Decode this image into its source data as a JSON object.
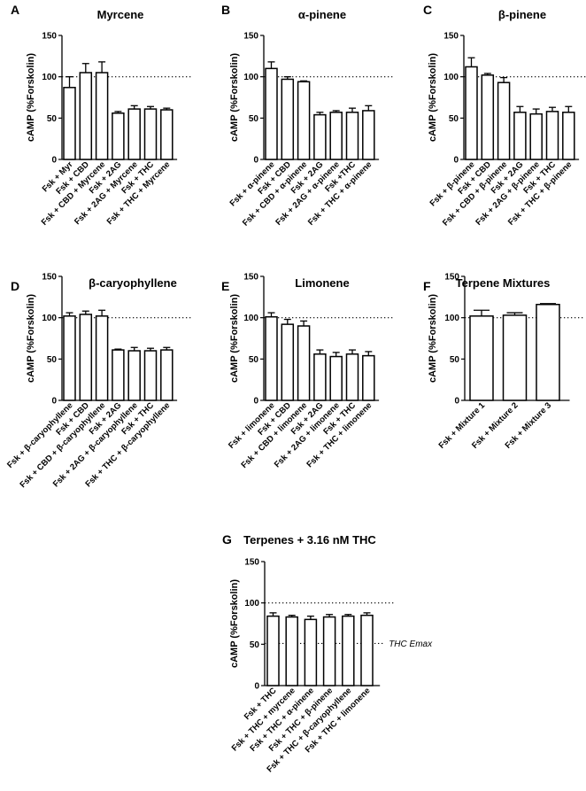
{
  "chart_data": [
    {
      "id": "A",
      "title": "Myrcene",
      "type": "bar",
      "ylabel": "cAMP (%Forskolin)",
      "ylim": [
        0,
        150
      ],
      "yticks": [
        0,
        50,
        100,
        150
      ],
      "reference_lines": [
        {
          "y": 100,
          "style": "dotted",
          "label": ""
        }
      ],
      "categories": [
        "Fsk + Myr",
        "Fsk + CBD",
        "Fsk + CBD + Myrcene",
        "Fsk + 2AG",
        "Fsk + 2AG + Myrcene",
        "Fsk + THC",
        "Fsk + THC + Myrcene"
      ],
      "values": [
        87,
        105,
        105,
        56,
        61,
        61,
        60
      ],
      "errors": [
        13,
        11,
        13,
        2,
        4,
        3,
        2
      ]
    },
    {
      "id": "B",
      "title": "α-pinene",
      "type": "bar",
      "ylabel": "cAMP (%Forskolin)",
      "ylim": [
        0,
        150
      ],
      "yticks": [
        0,
        50,
        100,
        150
      ],
      "reference_lines": [
        {
          "y": 100,
          "style": "dotted",
          "label": ""
        }
      ],
      "categories": [
        "Fsk + α-pinene",
        "Fsk + CBD",
        "Fsk + CBD + α-pinene",
        "Fsk + 2AG",
        "Fsk + 2AG + α-pinene",
        "Fsk +THC",
        "Fsk + THC + α-pinene"
      ],
      "values": [
        110,
        97,
        94,
        54,
        57,
        57,
        59
      ],
      "errors": [
        8,
        3,
        1,
        3,
        2,
        5,
        6
      ]
    },
    {
      "id": "C",
      "title": "β-pinene",
      "type": "bar",
      "ylabel": "cAMP (%Forskolin)",
      "ylim": [
        0,
        150
      ],
      "yticks": [
        0,
        50,
        100,
        150
      ],
      "reference_lines": [
        {
          "y": 100,
          "style": "dotted",
          "label": ""
        }
      ],
      "categories": [
        "Fsk + β-pinene",
        "Fsk + CBD",
        "Fsk + CBD + β-pinene",
        "Fsk + 2AG",
        "Fsk + 2AG + β-pinene",
        "Fsk + THC",
        "Fsk + THC + β-pinene"
      ],
      "values": [
        112,
        102,
        93,
        57,
        55,
        58,
        57
      ],
      "errors": [
        11,
        2,
        6,
        7,
        6,
        5,
        7
      ]
    },
    {
      "id": "D",
      "title": "β-caryophyllene",
      "type": "bar",
      "ylabel": "cAMP (%Forskolin)",
      "ylim": [
        0,
        150
      ],
      "yticks": [
        0,
        50,
        100,
        150
      ],
      "reference_lines": [
        {
          "y": 100,
          "style": "dotted",
          "label": ""
        }
      ],
      "categories": [
        "Fsk + β-caryophyllene",
        "Fsk + CBD",
        "Fsk + CBD + β-caryophyllene",
        "Fsk + 2AG",
        "Fsk + 2AG + β-caryophyllene",
        "Fsk + THC",
        "Fsk + THC + β-caryophyllene"
      ],
      "values": [
        102,
        104,
        102,
        61,
        60,
        60,
        61
      ],
      "errors": [
        4,
        4,
        7,
        1,
        4,
        3,
        3
      ]
    },
    {
      "id": "E",
      "title": "Limonene",
      "type": "bar",
      "ylabel": "cAMP (%Forskolin)",
      "ylim": [
        0,
        150
      ],
      "yticks": [
        0,
        50,
        100,
        150
      ],
      "reference_lines": [
        {
          "y": 100,
          "style": "dotted",
          "label": ""
        }
      ],
      "categories": [
        "Fsk + limonene",
        "Fsk + CBD",
        "Fsk + CBD + limonene",
        "Fsk + 2AG",
        "Fsk + 2AG + limonene",
        "Fsk + THC",
        "Fsk + THC + limonene"
      ],
      "values": [
        101,
        92,
        90,
        56,
        53,
        56,
        54
      ],
      "errors": [
        5,
        6,
        6,
        5,
        5,
        5,
        5
      ]
    },
    {
      "id": "F",
      "title": "Terpene Mixtures",
      "type": "bar",
      "ylabel": "cAMP (%Forskolin)",
      "ylim": [
        0,
        150
      ],
      "yticks": [
        0,
        50,
        100,
        150
      ],
      "reference_lines": [
        {
          "y": 100,
          "style": "dotted",
          "label": ""
        }
      ],
      "categories": [
        "Fsk + Mixture 1",
        "Fsk + Mixture 2",
        "Fsk + Mixture 3"
      ],
      "values": [
        102,
        103,
        116
      ],
      "errors": [
        7,
        3,
        1
      ]
    },
    {
      "id": "G",
      "title": "Terpenes + 3.16 nM THC",
      "type": "bar",
      "ylabel": "cAMP (%Forskolin)",
      "ylim": [
        0,
        150
      ],
      "yticks": [
        0,
        50,
        100,
        150
      ],
      "reference_lines": [
        {
          "y": 100,
          "style": "dotted",
          "label": ""
        },
        {
          "y": 51,
          "style": "dotted",
          "label": "THC Emax"
        }
      ],
      "categories": [
        "Fsk + THC",
        "Fsk + THC + myrcene",
        "Fsk + THC + α-pinene",
        "Fsk + THC + β-pinene",
        "Fsk + THC + β-caryophyllene",
        "Fsk + THC + limonene"
      ],
      "values": [
        84,
        83,
        80,
        83,
        84,
        85
      ],
      "errors": [
        4,
        2,
        4,
        3,
        2,
        3
      ]
    }
  ]
}
